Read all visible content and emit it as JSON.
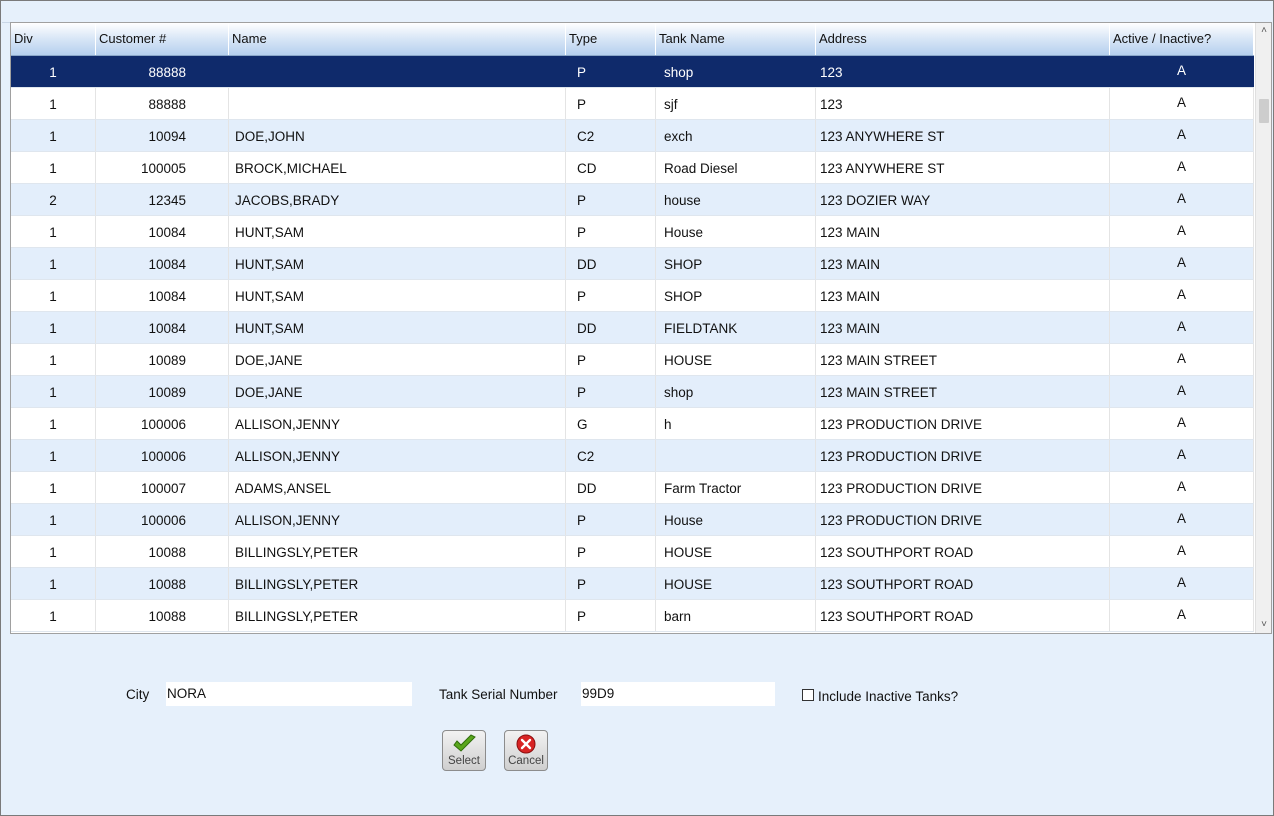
{
  "grid": {
    "columns": [
      "Div",
      "Customer #",
      "Name",
      "Type",
      "Tank Name",
      "Address",
      "Active / Inactive?"
    ],
    "selected_row": 0,
    "rows": [
      {
        "div": "1",
        "customer": "88888",
        "name": "",
        "type": "P",
        "tank": "shop",
        "address": "123",
        "active": "A"
      },
      {
        "div": "1",
        "customer": "88888",
        "name": "",
        "type": "P",
        "tank": "sjf",
        "address": "123",
        "active": "A"
      },
      {
        "div": "1",
        "customer": "10094",
        "name": "DOE,JOHN",
        "type": "C2",
        "tank": "exch",
        "address": "123 ANYWHERE ST",
        "active": "A"
      },
      {
        "div": "1",
        "customer": "100005",
        "name": "BROCK,MICHAEL",
        "type": "CD",
        "tank": "Road Diesel",
        "address": "123 ANYWHERE ST",
        "active": "A"
      },
      {
        "div": "2",
        "customer": "12345",
        "name": "JACOBS,BRADY",
        "type": "P",
        "tank": "house",
        "address": "123 DOZIER WAY",
        "active": "A"
      },
      {
        "div": "1",
        "customer": "10084",
        "name": "HUNT,SAM",
        "type": "P",
        "tank": "House",
        "address": "123 MAIN",
        "active": "A"
      },
      {
        "div": "1",
        "customer": "10084",
        "name": "HUNT,SAM",
        "type": "DD",
        "tank": "SHOP",
        "address": "123 MAIN",
        "active": "A"
      },
      {
        "div": "1",
        "customer": "10084",
        "name": "HUNT,SAM",
        "type": "P",
        "tank": "SHOP",
        "address": "123 MAIN",
        "active": "A"
      },
      {
        "div": "1",
        "customer": "10084",
        "name": "HUNT,SAM",
        "type": "DD",
        "tank": "FIELDTANK",
        "address": "123 MAIN",
        "active": "A"
      },
      {
        "div": "1",
        "customer": "10089",
        "name": "DOE,JANE",
        "type": "P",
        "tank": "HOUSE",
        "address": "123 MAIN STREET",
        "active": "A"
      },
      {
        "div": "1",
        "customer": "10089",
        "name": "DOE,JANE",
        "type": "P",
        "tank": "shop",
        "address": "123 MAIN STREET",
        "active": "A"
      },
      {
        "div": "1",
        "customer": "100006",
        "name": "ALLISON,JENNY",
        "type": "G",
        "tank": "h",
        "address": "123 PRODUCTION DRIVE",
        "active": "A"
      },
      {
        "div": "1",
        "customer": "100006",
        "name": "ALLISON,JENNY",
        "type": "C2",
        "tank": "",
        "address": "123 PRODUCTION DRIVE",
        "active": "A"
      },
      {
        "div": "1",
        "customer": "100007",
        "name": "ADAMS,ANSEL",
        "type": "DD",
        "tank": "Farm Tractor",
        "address": "123 PRODUCTION DRIVE",
        "active": "A"
      },
      {
        "div": "1",
        "customer": "100006",
        "name": "ALLISON,JENNY",
        "type": "P",
        "tank": "House",
        "address": "123 PRODUCTION DRIVE",
        "active": "A"
      },
      {
        "div": "1",
        "customer": "10088",
        "name": "BILLINGSLY,PETER",
        "type": "P",
        "tank": "HOUSE",
        "address": "123 SOUTHPORT ROAD",
        "active": "A"
      },
      {
        "div": "1",
        "customer": "10088",
        "name": "BILLINGSLY,PETER",
        "type": "P",
        "tank": "HOUSE",
        "address": "123 SOUTHPORT ROAD",
        "active": "A"
      },
      {
        "div": "1",
        "customer": "10088",
        "name": "BILLINGSLY,PETER",
        "type": "P",
        "tank": "barn",
        "address": "123 SOUTHPORT ROAD",
        "active": "A"
      }
    ]
  },
  "filters": {
    "city_label": "City",
    "city_value": "NORA",
    "serial_label": "Tank Serial Number",
    "serial_value": "99D9",
    "inactive_label": "Include Inactive Tanks?",
    "inactive_checked": false
  },
  "buttons": {
    "select_label": "Select",
    "cancel_label": "Cancel"
  },
  "icons": {
    "select": "checkmark-icon",
    "cancel": "x-circle-icon",
    "scroll_up": "chevron-up-icon",
    "scroll_down": "chevron-down-icon"
  },
  "colors": {
    "selected_row": "#0f2a6b",
    "alt_row": "#e3eefb",
    "background": "#e6f0fb"
  }
}
